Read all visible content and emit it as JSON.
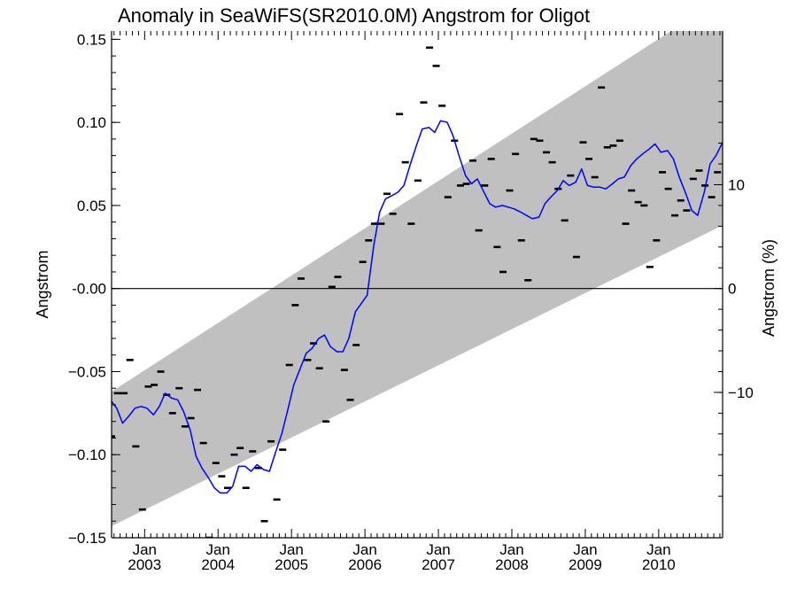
{
  "chart_data": {
    "type": "line",
    "title": "Anomaly in SeaWiFS(SR2010.0M) Angstrom for Oligot",
    "ylabel": "Angstrom",
    "ylabel_right": "Angstrom (%)",
    "xlim": [
      2002.55,
      2010.87
    ],
    "ylim": [
      -0.15,
      0.155
    ],
    "yticks": [
      0.15,
      0.1,
      0.05,
      0.0,
      -0.05,
      -0.1,
      -0.15
    ],
    "ytick_labels": [
      "0.15",
      "0.10",
      "0.05",
      "-0.00",
      "−0.05",
      "−0.10",
      "−0.15"
    ],
    "ytick_labels_right": [
      "10",
      "0",
      "−10"
    ],
    "yticks_right_pct": [
      10,
      0,
      -10
    ],
    "right_axis_scale": 0.0625,
    "xticks": [
      {
        "x": 2003.0,
        "month": "Jan",
        "year": "2003"
      },
      {
        "x": 2004.0,
        "month": "Jan",
        "year": "2004"
      },
      {
        "x": 2005.0,
        "month": "Jan",
        "year": "2005"
      },
      {
        "x": 2006.0,
        "month": "Jan",
        "year": "2006"
      },
      {
        "x": 2007.0,
        "month": "Jan",
        "year": "2007"
      },
      {
        "x": 2008.0,
        "month": "Jan",
        "year": "2008"
      },
      {
        "x": 2009.0,
        "month": "Jan",
        "year": "2009"
      },
      {
        "x": 2010.0,
        "month": "Jan",
        "year": "2010"
      }
    ],
    "zero_line": 0,
    "band": {
      "x": [
        2002.55,
        2010.87
      ],
      "upper": [
        -0.062,
        0.175
      ],
      "lower": [
        -0.143,
        0.038
      ],
      "color": "#c0c0c0"
    },
    "smooth_series": {
      "color": "#0000ff",
      "x": [
        2002.55,
        2002.62,
        2002.7,
        2002.78,
        2002.87,
        2002.95,
        2003.03,
        2003.12,
        2003.2,
        2003.28,
        2003.37,
        2003.45,
        2003.53,
        2003.62,
        2003.7,
        2003.78,
        2003.87,
        2003.95,
        2004.03,
        2004.12,
        2004.2,
        2004.28,
        2004.37,
        2004.45,
        2004.53,
        2004.62,
        2004.7,
        2004.78,
        2004.87,
        2004.95,
        2005.03,
        2005.12,
        2005.2,
        2005.28,
        2005.37,
        2005.45,
        2005.53,
        2005.62,
        2005.7,
        2005.78,
        2005.87,
        2005.95,
        2006.03,
        2006.12,
        2006.2,
        2006.28,
        2006.37,
        2006.45,
        2006.53,
        2006.62,
        2006.7,
        2006.78,
        2006.87,
        2006.95,
        2007.03,
        2007.12,
        2007.2,
        2007.28,
        2007.37,
        2007.45,
        2007.53,
        2007.62,
        2007.7,
        2007.78,
        2007.87,
        2007.95,
        2008.03,
        2008.12,
        2008.2,
        2008.28,
        2008.37,
        2008.45,
        2008.53,
        2008.62,
        2008.7,
        2008.78,
        2008.87,
        2008.95,
        2009.03,
        2009.12,
        2009.2,
        2009.28,
        2009.37,
        2009.45,
        2009.53,
        2009.62,
        2009.7,
        2009.78,
        2009.87,
        2009.95,
        2010.03,
        2010.12,
        2010.2,
        2010.28,
        2010.37,
        2010.45,
        2010.53,
        2010.62,
        2010.7,
        2010.78,
        2010.87
      ],
      "y": [
        -0.068,
        -0.072,
        -0.081,
        -0.077,
        -0.072,
        -0.071,
        -0.072,
        -0.076,
        -0.071,
        -0.063,
        -0.066,
        -0.067,
        -0.074,
        -0.085,
        -0.101,
        -0.108,
        -0.114,
        -0.12,
        -0.123,
        -0.123,
        -0.119,
        -0.107,
        -0.107,
        -0.11,
        -0.106,
        -0.109,
        -0.11,
        -0.099,
        -0.087,
        -0.073,
        -0.058,
        -0.048,
        -0.039,
        -0.036,
        -0.03,
        -0.028,
        -0.035,
        -0.038,
        -0.038,
        -0.03,
        -0.014,
        -0.009,
        -0.004,
        0.026,
        0.046,
        0.054,
        0.056,
        0.058,
        0.062,
        0.075,
        0.086,
        0.096,
        0.097,
        0.094,
        0.101,
        0.1,
        0.092,
        0.08,
        0.068,
        0.063,
        0.066,
        0.058,
        0.051,
        0.049,
        0.05,
        0.049,
        0.048,
        0.046,
        0.044,
        0.042,
        0.043,
        0.051,
        0.055,
        0.059,
        0.065,
        0.062,
        0.064,
        0.072,
        0.062,
        0.061,
        0.061,
        0.06,
        0.063,
        0.066,
        0.067,
        0.074,
        0.078,
        0.081,
        0.084,
        0.087,
        0.082,
        0.083,
        0.078,
        0.067,
        0.057,
        0.047,
        0.044,
        0.058,
        0.075,
        0.08,
        0.088
      ]
    },
    "monthly_points": {
      "color": "#000000",
      "x": [
        2002.55,
        2002.63,
        2002.72,
        2002.8,
        2002.88,
        2002.97,
        2003.05,
        2003.13,
        2003.22,
        2003.3,
        2003.38,
        2003.47,
        2003.55,
        2003.63,
        2003.72,
        2003.8,
        2003.88,
        2003.97,
        2004.05,
        2004.13,
        2004.22,
        2004.3,
        2004.38,
        2004.47,
        2004.55,
        2004.63,
        2004.72,
        2004.8,
        2004.88,
        2004.97,
        2005.05,
        2005.13,
        2005.22,
        2005.3,
        2005.38,
        2005.47,
        2005.55,
        2005.63,
        2005.72,
        2005.8,
        2005.88,
        2005.97,
        2006.05,
        2006.13,
        2006.22,
        2006.3,
        2006.38,
        2006.47,
        2006.55,
        2006.63,
        2006.72,
        2006.8,
        2006.88,
        2006.97,
        2007.05,
        2007.13,
        2007.22,
        2007.3,
        2007.38,
        2007.47,
        2007.55,
        2007.63,
        2007.72,
        2007.8,
        2007.88,
        2007.97,
        2008.05,
        2008.13,
        2008.22,
        2008.3,
        2008.38,
        2008.47,
        2008.55,
        2008.63,
        2008.72,
        2008.8,
        2008.88,
        2008.97,
        2009.05,
        2009.13,
        2009.22,
        2009.3,
        2009.38,
        2009.47,
        2009.55,
        2009.63,
        2009.72,
        2009.8,
        2009.88,
        2009.97,
        2010.05,
        2010.13,
        2010.22,
        2010.3,
        2010.38,
        2010.47,
        2010.55,
        2010.63,
        2010.72,
        2010.8
      ],
      "y": [
        -0.089,
        -0.063,
        -0.063,
        -0.043,
        -0.095,
        -0.133,
        -0.059,
        -0.058,
        -0.05,
        -0.064,
        -0.075,
        -0.06,
        -0.083,
        -0.078,
        -0.061,
        -0.093,
        -0.15,
        -0.105,
        -0.113,
        -0.12,
        -0.1,
        -0.096,
        -0.12,
        -0.098,
        -0.108,
        -0.14,
        -0.092,
        -0.127,
        -0.097,
        -0.046,
        -0.01,
        0.006,
        -0.043,
        -0.033,
        -0.048,
        -0.08,
        0.001,
        0.007,
        -0.049,
        -0.067,
        -0.034,
        0.016,
        0.029,
        0.039,
        0.039,
        0.057,
        0.045,
        0.105,
        0.076,
        0.039,
        0.065,
        0.112,
        0.145,
        0.134,
        0.11,
        0.055,
        0.089,
        0.062,
        0.063,
        0.077,
        0.035,
        0.062,
        0.078,
        0.025,
        0.01,
        0.059,
        0.081,
        0.029,
        0.005,
        0.09,
        0.089,
        0.082,
        0.076,
        0.06,
        0.041,
        0.068,
        0.019,
        0.088,
        0.078,
        0.067,
        0.121,
        0.085,
        0.086,
        0.089,
        0.039,
        0.059,
        0.052,
        0.05,
        0.013,
        0.029,
        0.07,
        0.06,
        0.044,
        0.053,
        0.047,
        0.066,
        0.071,
        0.062,
        0.055,
        0.07
      ]
    }
  }
}
